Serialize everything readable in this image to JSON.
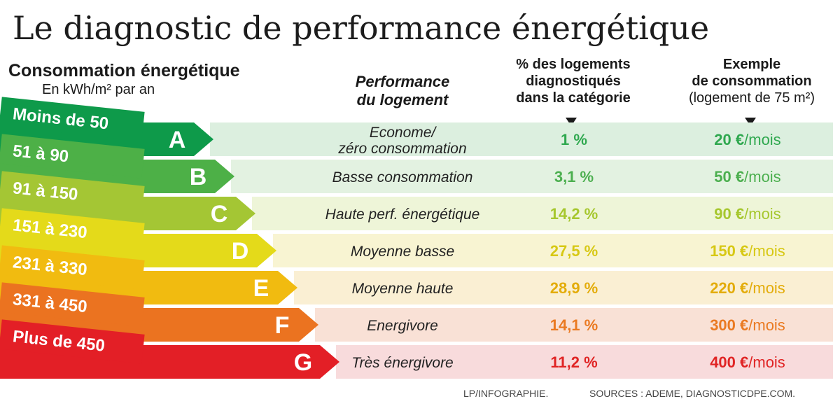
{
  "title": "Le diagnostic de performance énergétique",
  "headers": {
    "consumption": "Consommation énergétique",
    "unit": "En kWh/m² par an",
    "performance": [
      "Performance",
      "du logement"
    ],
    "percent": [
      "% des logements",
      "diagnostiqués",
      "dans la catégorie"
    ],
    "example": [
      "Exemple",
      "de consommation",
      "(logement de 75 m²)"
    ]
  },
  "footer": {
    "credit": "LP/INFOGRAPHIE.",
    "sources": "SOURCES : ADEME, DIAGNOSTICDPE.COM."
  },
  "chart_data": {
    "type": "table",
    "columns": [
      "Consommation énergétique",
      "Performance du logement",
      "% des logements diagnostiqués dans la catégorie",
      "Exemple de consommation (logement de 75 m²)"
    ],
    "rows": [
      {
        "range": "Moins de 50",
        "letter": "A",
        "performance": [
          "Econome/",
          "zéro consommation"
        ],
        "percent": 1,
        "percent_label": "1 %",
        "cost": 20,
        "cost_label": "20 €",
        "cost_unit": "/mois",
        "color": "#0e9a4a",
        "text_color": "#2fa84f",
        "row_bg": "#dcefdf"
      },
      {
        "range": "51 à 90",
        "letter": "B",
        "performance": [
          "Basse consommation"
        ],
        "percent": 3.1,
        "percent_label": "3,1 %",
        "cost": 50,
        "cost_label": "50 €",
        "cost_unit": "/mois",
        "color": "#4db047",
        "text_color": "#4caf4f",
        "row_bg": "#e3f2e1"
      },
      {
        "range": "91 à 150",
        "letter": "C",
        "performance": [
          "Haute  perf. énergétique"
        ],
        "percent": 14.2,
        "percent_label": "14,2 %",
        "cost": 90,
        "cost_label": "90 €",
        "cost_unit": "/mois",
        "color": "#a4c634",
        "text_color": "#a6c72e",
        "row_bg": "#eef5d8"
      },
      {
        "range": "151 à 230",
        "letter": "D",
        "performance": [
          "Moyenne basse"
        ],
        "percent": 27.5,
        "percent_label": "27,5 %",
        "cost": 150,
        "cost_label": "150 €",
        "cost_unit": "/mois",
        "color": "#e4da1a",
        "text_color": "#d7c814",
        "row_bg": "#f8f4d2"
      },
      {
        "range": "231 à 330",
        "letter": "E",
        "performance": [
          "Moyenne haute"
        ],
        "percent": 28.9,
        "percent_label": "28,9 %",
        "cost": 220,
        "cost_label": "220 €",
        "cost_unit": "/mois",
        "color": "#f1bb10",
        "text_color": "#e3ac0a",
        "row_bg": "#faefd3"
      },
      {
        "range": "331 à 450",
        "letter": "F",
        "performance": [
          "Energivore"
        ],
        "percent": 14.1,
        "percent_label": "14,1 %",
        "cost": 300,
        "cost_label": "300 €",
        "cost_unit": "/mois",
        "color": "#eb7320",
        "text_color": "#ea7a22",
        "row_bg": "#f9e1d6"
      },
      {
        "range": "Plus de 450",
        "letter": "G",
        "performance": [
          "Très énergivore"
        ],
        "percent": 11.2,
        "percent_label": "11,2 %",
        "cost": 400,
        "cost_label": "400 €",
        "cost_unit": "/mois",
        "color": "#e31f26",
        "text_color": "#e02424",
        "row_bg": "#f8dbdc"
      }
    ]
  }
}
